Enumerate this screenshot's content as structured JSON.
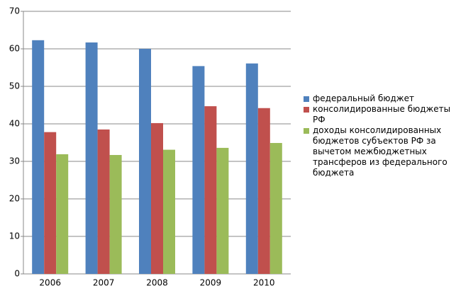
{
  "chart_data": {
    "type": "bar",
    "categories": [
      "2006",
      "2007",
      "2008",
      "2009",
      "2010"
    ],
    "series": [
      {
        "name": "федеральный бюджет",
        "color": "#4f81bd",
        "values": [
          62.3,
          61.7,
          60.0,
          55.4,
          56.1
        ]
      },
      {
        "name": "консолидированные бюджеты РФ",
        "color": "#c0504d",
        "values": [
          37.8,
          38.5,
          40.2,
          44.7,
          44.2
        ]
      },
      {
        "name": "доходы консолидированных бюджетов субъектов РФ за вычетом межбюджетных трансферов из федерального бюджета",
        "color": "#9bbb59",
        "values": [
          31.9,
          31.7,
          33.1,
          33.6,
          34.9
        ]
      }
    ],
    "ylim": [
      0,
      70
    ],
    "yticks": [
      0,
      10,
      20,
      30,
      40,
      50,
      60,
      70
    ],
    "grid": true,
    "legend": "right"
  }
}
